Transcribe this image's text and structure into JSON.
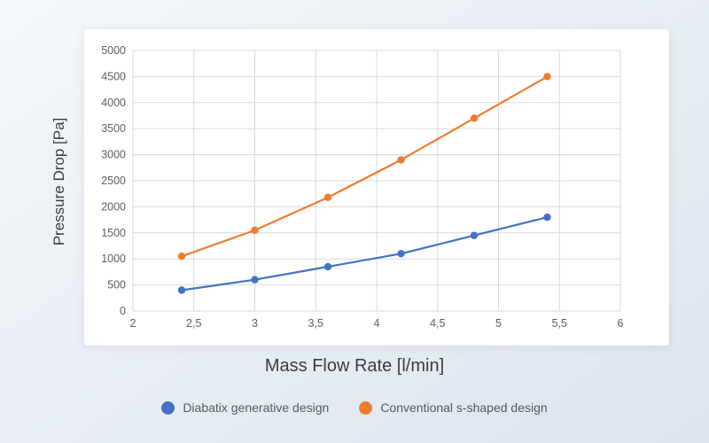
{
  "chart_data": {
    "type": "line",
    "x": [
      2.4,
      3.0,
      3.6,
      4.2,
      4.8,
      5.4
    ],
    "series": [
      {
        "name": "Diabatix generative design",
        "color": "#4472c4",
        "values": [
          400,
          600,
          850,
          1100,
          1450,
          1800
        ]
      },
      {
        "name": "Conventional s-shaped design",
        "color": "#ee7d30",
        "values": [
          1050,
          1550,
          2180,
          2900,
          3700,
          4500
        ]
      }
    ],
    "title": "",
    "xlabel": "Mass Flow Rate [l/min]",
    "ylabel": "Pressure Drop [Pa]",
    "xlim": [
      2,
      6
    ],
    "ylim": [
      0,
      5000
    ],
    "xticks": {
      "values": [
        2,
        2.5,
        3,
        3.5,
        4,
        4.5,
        5,
        5.5,
        6
      ],
      "labels": [
        "2",
        "2,5",
        "3",
        "3,5",
        "4",
        "4,5",
        "5",
        "5,5",
        "6"
      ]
    },
    "yticks": {
      "values": [
        0,
        500,
        1000,
        1500,
        2000,
        2500,
        3000,
        3500,
        4000,
        4500,
        5000
      ],
      "labels": [
        "0",
        "500",
        "1000",
        "1500",
        "2000",
        "2500",
        "3000",
        "3500",
        "4000",
        "4500",
        "5000"
      ]
    },
    "grid": true,
    "legend_position": "bottom",
    "grid_color": "#d9d9d9",
    "background": "#ffffff"
  }
}
